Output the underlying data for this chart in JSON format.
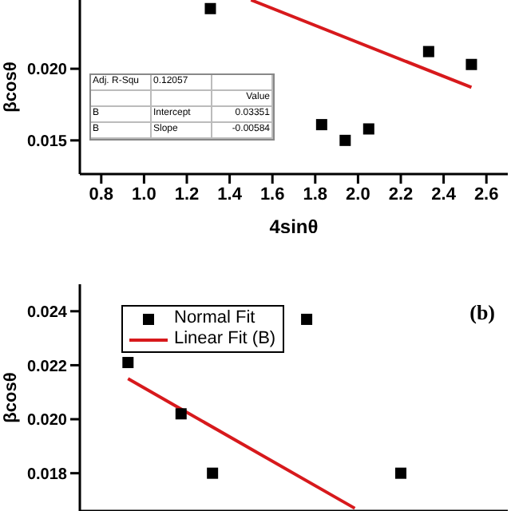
{
  "chart_data": [
    {
      "type": "scatter",
      "xlabel": "4sinθ",
      "ylabel": "βcosθ",
      "grid": false,
      "xlim": [
        0.7,
        2.7
      ],
      "xticks": [
        0.8,
        {
          "value": 1,
          "label": "1.0"
        },
        1.2,
        1.4,
        1.6,
        1.8,
        {
          "value": 2,
          "label": "2.0"
        },
        2.2,
        2.4,
        2.6
      ],
      "ylim": [
        0.01265,
        0.0248
      ],
      "yticks": [
        0.015,
        {
          "value": 0.02,
          "label": "0.020"
        }
      ],
      "series": [
        {
          "marker": "square",
          "color": "#000000",
          "x": [
            1.31,
            1.83,
            1.94,
            2.05,
            2.33,
            2.53
          ],
          "values": [
            0.0242,
            0.0161,
            0.015,
            0.0158,
            0.0212,
            0.0203
          ]
        },
        {
          "type": "line",
          "marker": "none",
          "color": "#d7191c",
          "x": [
            1.5,
            2.53
          ],
          "values": [
            0.0248,
            0.0187
          ]
        }
      ],
      "annotations": [
        "Adj. R-Squ",
        "0.12057",
        "Value",
        "B",
        "Intercept",
        "0.03351",
        "B",
        "Slope",
        "-0.00584"
      ]
    },
    {
      "type": "scatter",
      "ylabel": "βcosθ",
      "grid": false,
      "legend": "top left",
      "tick_labels": "y",
      "xlim": [
        0.7,
        2.7
      ],
      "ylim": [
        0.0166,
        0.025
      ],
      "yticks": [
        0.018,
        {
          "value": 0.02,
          "label": "0.020"
        },
        0.022,
        0.024
      ],
      "series": [
        {
          "name": "Normal Fit",
          "marker": "square",
          "color": "#000000",
          "x": [
            0.925,
            1.173,
            1.32,
            1.76,
            2.2
          ],
          "values": [
            0.0221,
            0.0202,
            0.018,
            0.0237,
            0.018
          ]
        },
        {
          "type": "line",
          "marker": "none",
          "name": "Linear Fit (B)",
          "color": "#d7191c",
          "x": [
            0.925,
            1.985
          ],
          "values": [
            0.0215,
            0.0167
          ]
        }
      ],
      "annotations": [
        "(b)"
      ]
    }
  ]
}
